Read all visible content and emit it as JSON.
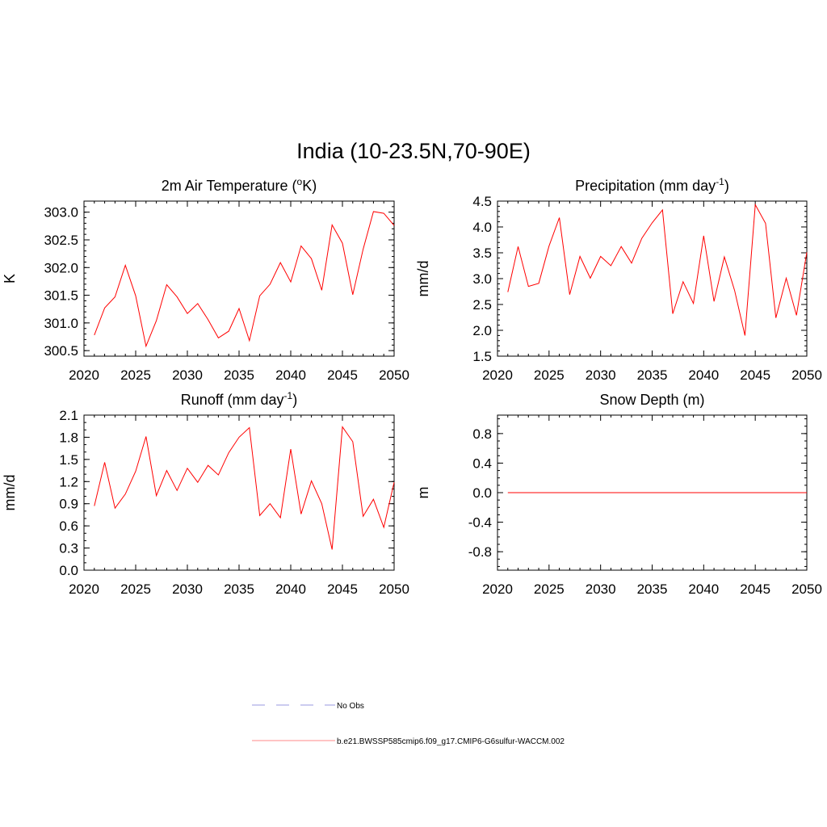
{
  "figure": {
    "title": "India (10-23.5N,70-90E)"
  },
  "legend": {
    "items": [
      {
        "label": "No Obs",
        "color": "#9a9ae0",
        "style": "dashed"
      },
      {
        "label": "b.e21.BWSSP585cmip6.f09_g17.CMIP6-G6sulfur-WACCM.002",
        "color": "#ff8a8a",
        "style": "solid"
      }
    ]
  },
  "chart_data": [
    {
      "id": "temp",
      "type": "line",
      "title": "2m Air Temperature (",
      "title_sup_pre": "o",
      "title_after": "K)",
      "title_sup": "",
      "title_end": "",
      "ylabel": "K",
      "xlim": [
        2020,
        2050
      ],
      "ylim": [
        300.4,
        303.2
      ],
      "xticks": [
        2020,
        2025,
        2030,
        2035,
        2040,
        2045,
        2050
      ],
      "yticks": [
        300.5,
        301.0,
        301.5,
        302.0,
        302.5,
        303.0
      ],
      "ytick_labels": [
        "300.5",
        "301.0",
        "301.5",
        "302.0",
        "302.5",
        "303.0"
      ],
      "yminor": 0.1,
      "series": [
        {
          "color": "#ff0000",
          "x": [
            2021,
            2022,
            2023,
            2024,
            2025,
            2026,
            2027,
            2028,
            2029,
            2030,
            2031,
            2032,
            2033,
            2034,
            2035,
            2036,
            2037,
            2038,
            2039,
            2040,
            2041,
            2042,
            2043,
            2044,
            2045,
            2046,
            2047,
            2048,
            2049,
            2050
          ],
          "y": [
            300.78,
            301.27,
            301.47,
            302.04,
            301.49,
            300.58,
            301.04,
            301.69,
            301.47,
            301.17,
            301.35,
            301.06,
            300.73,
            300.85,
            301.26,
            300.68,
            301.49,
            301.7,
            302.09,
            301.74,
            302.39,
            302.16,
            301.59,
            302.77,
            302.44,
            301.51,
            302.33,
            303.01,
            302.98,
            302.76
          ]
        }
      ]
    },
    {
      "id": "precip",
      "type": "line",
      "title": "Precipitation (mm day",
      "title_sup": "-1",
      "title_end": ")",
      "ylabel": "mm/d",
      "xlim": [
        2020,
        2050
      ],
      "ylim": [
        1.5,
        4.5
      ],
      "xticks": [
        2020,
        2025,
        2030,
        2035,
        2040,
        2045,
        2050
      ],
      "yticks": [
        1.5,
        2.0,
        2.5,
        3.0,
        3.5,
        4.0,
        4.5
      ],
      "ytick_labels": [
        "1.5",
        "2.0",
        "2.5",
        "3.0",
        "3.5",
        "4.0",
        "4.5"
      ],
      "yminor": 0.1,
      "series": [
        {
          "color": "#ff0000",
          "x": [
            2021,
            2022,
            2023,
            2024,
            2025,
            2026,
            2027,
            2028,
            2029,
            2030,
            2031,
            2032,
            2033,
            2034,
            2035,
            2036,
            2037,
            2038,
            2039,
            2040,
            2041,
            2042,
            2043,
            2044,
            2045,
            2046,
            2047,
            2048,
            2049,
            2050
          ],
          "y": [
            2.74,
            3.62,
            2.85,
            2.91,
            3.63,
            4.18,
            2.69,
            3.43,
            3.01,
            3.43,
            3.25,
            3.62,
            3.3,
            3.78,
            4.08,
            4.33,
            2.32,
            2.94,
            2.52,
            3.83,
            2.56,
            3.42,
            2.77,
            1.9,
            4.43,
            4.07,
            2.24,
            3.01,
            2.29,
            3.51
          ]
        }
      ]
    },
    {
      "id": "runoff",
      "type": "line",
      "title": "Runoff (mm day",
      "title_sup": "-1",
      "title_end": ")",
      "ylabel": "mm/d",
      "xlim": [
        2020,
        2050
      ],
      "ylim": [
        0.0,
        2.1
      ],
      "xticks": [
        2020,
        2025,
        2030,
        2035,
        2040,
        2045,
        2050
      ],
      "yticks": [
        0.0,
        0.3,
        0.6,
        0.9,
        1.2,
        1.5,
        1.8,
        2.1
      ],
      "ytick_labels": [
        "0.0",
        "0.3",
        "0.6",
        "0.9",
        "1.2",
        "1.5",
        "1.8",
        "2.1"
      ],
      "yminor": 0.1,
      "series": [
        {
          "color": "#ff0000",
          "x": [
            2021,
            2022,
            2023,
            2024,
            2025,
            2026,
            2027,
            2028,
            2029,
            2030,
            2031,
            2032,
            2033,
            2034,
            2035,
            2036,
            2037,
            2038,
            2039,
            2040,
            2041,
            2042,
            2043,
            2044,
            2045,
            2046,
            2047,
            2048,
            2049,
            2050
          ],
          "y": [
            0.87,
            1.46,
            0.84,
            1.03,
            1.34,
            1.81,
            1.01,
            1.35,
            1.08,
            1.38,
            1.19,
            1.42,
            1.29,
            1.59,
            1.8,
            1.93,
            0.74,
            0.9,
            0.71,
            1.64,
            0.76,
            1.21,
            0.9,
            0.28,
            1.94,
            1.74,
            0.73,
            0.96,
            0.58,
            1.19
          ]
        }
      ]
    },
    {
      "id": "snow",
      "type": "line",
      "title": "Snow Depth (m)",
      "title_sup": "",
      "title_end": "",
      "ylabel": "m",
      "xlim": [
        2020,
        2050
      ],
      "ylim": [
        -1.05,
        1.05
      ],
      "xticks": [
        2020,
        2025,
        2030,
        2035,
        2040,
        2045,
        2050
      ],
      "yticks": [
        -0.8,
        -0.4,
        0.0,
        0.4,
        0.8
      ],
      "ytick_labels": [
        "-0.8",
        "-0.4",
        "0.0",
        "0.4",
        "0.8"
      ],
      "yminor": 0.1,
      "series": [
        {
          "color": "#ff0000",
          "x": [
            2021,
            2022,
            2023,
            2024,
            2025,
            2026,
            2027,
            2028,
            2029,
            2030,
            2031,
            2032,
            2033,
            2034,
            2035,
            2036,
            2037,
            2038,
            2039,
            2040,
            2041,
            2042,
            2043,
            2044,
            2045,
            2046,
            2047,
            2048,
            2049,
            2050
          ],
          "y": [
            0,
            0,
            0,
            0,
            0,
            0,
            0,
            0,
            0,
            0,
            0,
            0,
            0,
            0,
            0,
            0,
            0,
            0,
            0,
            0,
            0,
            0,
            0,
            0,
            0,
            0,
            0,
            0,
            0,
            0
          ]
        }
      ]
    }
  ]
}
